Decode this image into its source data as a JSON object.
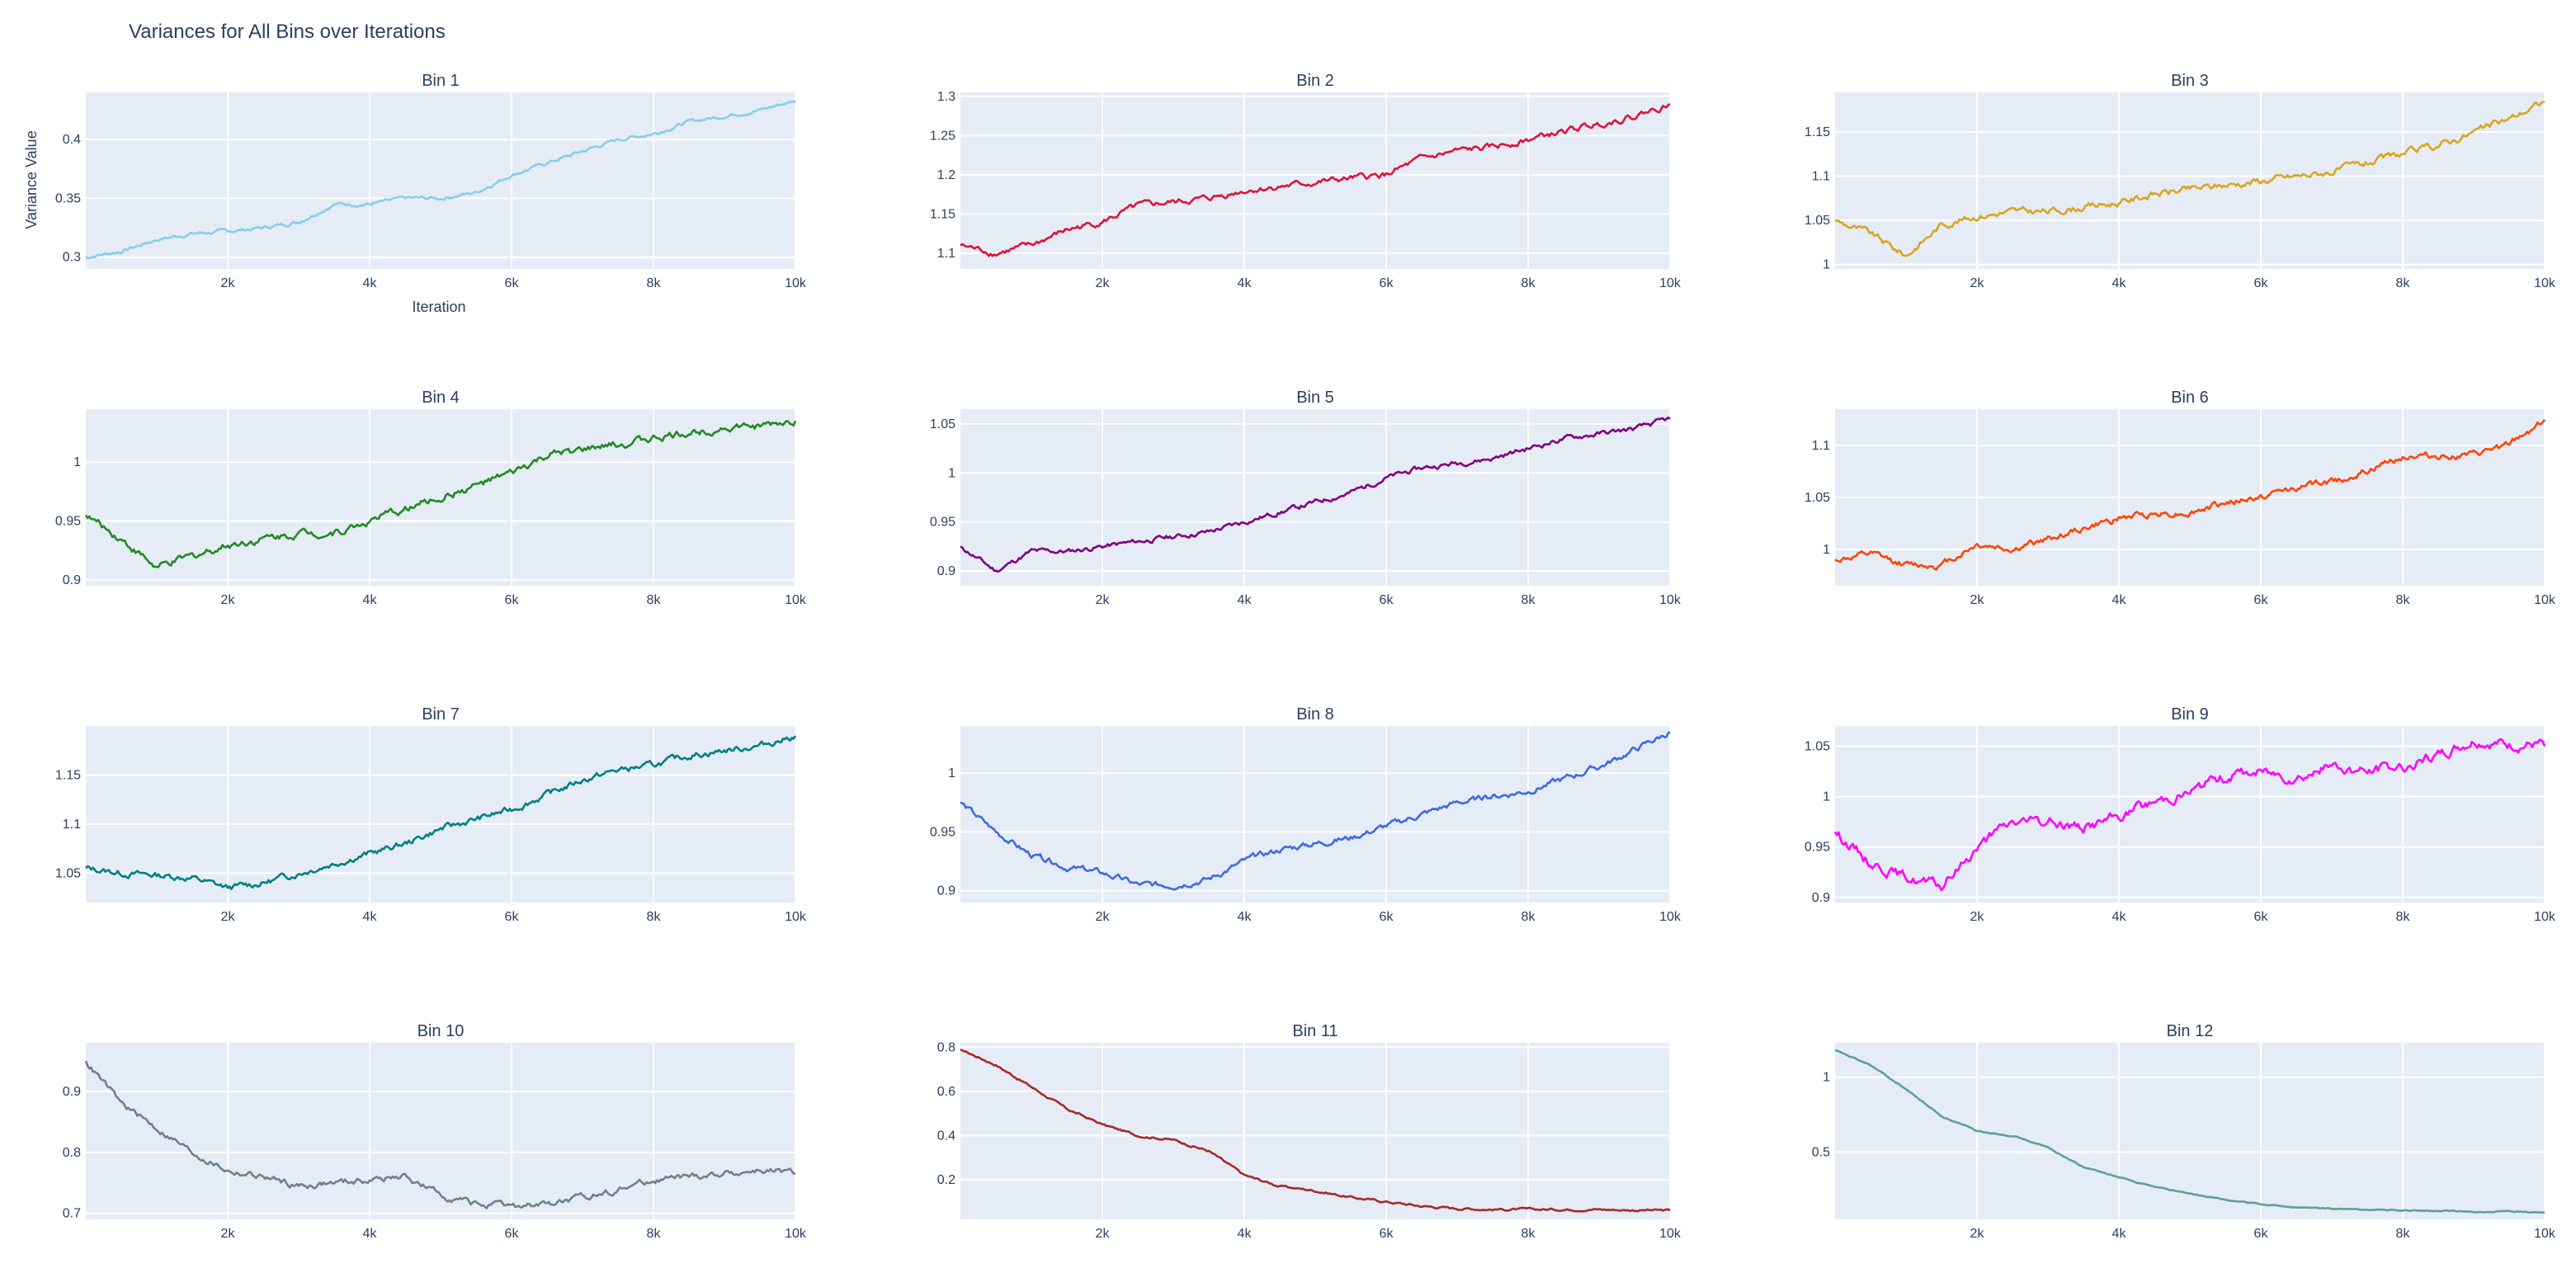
{
  "figure": {
    "title": "Variances for All Bins over Iterations",
    "xlabel": "Iteration",
    "ylabel": "Variance Value"
  },
  "chart_data": [
    {
      "type": "line",
      "title": "Bin 1",
      "color": "#87ceeb",
      "xlim": [
        0,
        10000
      ],
      "ylim": [
        0.29,
        0.44
      ],
      "yticks": [
        0.3,
        0.35,
        0.4
      ],
      "xticks": [
        2000,
        4000,
        6000,
        8000,
        10000
      ],
      "xtick_labels": [
        "2k",
        "4k",
        "6k",
        "8k",
        "10k"
      ],
      "ytick_labels": [
        "0.3",
        "0.35",
        "0.4"
      ],
      "x": [
        0,
        500,
        1000,
        1500,
        2000,
        2500,
        3000,
        3500,
        4000,
        4500,
        5000,
        5500,
        6000,
        6500,
        7000,
        7500,
        8000,
        8500,
        9000,
        9500,
        10000
      ],
      "y": [
        0.3,
        0.305,
        0.315,
        0.32,
        0.322,
        0.325,
        0.33,
        0.345,
        0.345,
        0.35,
        0.35,
        0.355,
        0.37,
        0.38,
        0.39,
        0.4,
        0.405,
        0.415,
        0.42,
        0.425,
        0.433
      ],
      "noise": 0.0012
    },
    {
      "type": "line",
      "title": "Bin 2",
      "color": "#dc143c",
      "xlim": [
        0,
        10000
      ],
      "ylim": [
        1.08,
        1.305
      ],
      "yticks": [
        1.1,
        1.15,
        1.2,
        1.25,
        1.3
      ],
      "xticks": [
        2000,
        4000,
        6000,
        8000,
        10000
      ],
      "xtick_labels": [
        "2k",
        "4k",
        "6k",
        "8k",
        "10k"
      ],
      "ytick_labels": [
        "1.1",
        "1.15",
        "1.2",
        "1.25",
        "1.3"
      ],
      "x": [
        0,
        500,
        1000,
        1500,
        2000,
        2500,
        3000,
        3500,
        4000,
        4500,
        5000,
        5500,
        6000,
        6500,
        7000,
        7500,
        8000,
        8500,
        9000,
        9500,
        10000
      ],
      "y": [
        1.11,
        1.1,
        1.11,
        1.13,
        1.14,
        1.16,
        1.165,
        1.17,
        1.18,
        1.185,
        1.19,
        1.195,
        1.2,
        1.22,
        1.23,
        1.235,
        1.245,
        1.255,
        1.265,
        1.275,
        1.29
      ],
      "noise": 0.003
    },
    {
      "type": "line",
      "title": "Bin 3",
      "color": "#daa520",
      "xlim": [
        0,
        10000
      ],
      "ylim": [
        0.995,
        1.195
      ],
      "yticks": [
        1,
        1.05,
        1.1,
        1.15
      ],
      "xticks": [
        2000,
        4000,
        6000,
        8000,
        10000
      ],
      "xtick_labels": [
        "2k",
        "4k",
        "6k",
        "8k",
        "10k"
      ],
      "ytick_labels": [
        "1",
        "1.05",
        "1.1",
        "1.15"
      ],
      "x": [
        0,
        500,
        1000,
        1500,
        2000,
        2500,
        3000,
        3500,
        4000,
        4500,
        5000,
        5500,
        6000,
        6500,
        7000,
        7500,
        8000,
        8500,
        9000,
        9500,
        10000
      ],
      "y": [
        1.05,
        1.035,
        1.01,
        1.045,
        1.055,
        1.06,
        1.06,
        1.065,
        1.07,
        1.08,
        1.085,
        1.09,
        1.095,
        1.1,
        1.105,
        1.115,
        1.125,
        1.135,
        1.15,
        1.165,
        1.185
      ],
      "noise": 0.003
    },
    {
      "type": "line",
      "title": "Bin 4",
      "color": "#228b22",
      "xlim": [
        0,
        10000
      ],
      "ylim": [
        0.895,
        1.045
      ],
      "yticks": [
        0.9,
        0.95,
        1
      ],
      "xticks": [
        2000,
        4000,
        6000,
        8000,
        10000
      ],
      "xtick_labels": [
        "2k",
        "4k",
        "6k",
        "8k",
        "10k"
      ],
      "ytick_labels": [
        "0.9",
        "0.95",
        "1"
      ],
      "x": [
        0,
        500,
        1000,
        1500,
        2000,
        2500,
        3000,
        3500,
        4000,
        4500,
        5000,
        5500,
        6000,
        6500,
        7000,
        7500,
        8000,
        8500,
        9000,
        9500,
        10000
      ],
      "y": [
        0.955,
        0.935,
        0.91,
        0.92,
        0.93,
        0.935,
        0.94,
        0.94,
        0.95,
        0.96,
        0.97,
        0.98,
        0.99,
        1.005,
        1.01,
        1.015,
        1.02,
        1.025,
        1.03,
        1.03,
        1.035
      ],
      "noise": 0.0025
    },
    {
      "type": "line",
      "title": "Bin 5",
      "color": "#800080",
      "xlim": [
        0,
        10000
      ],
      "ylim": [
        0.885,
        1.065
      ],
      "yticks": [
        0.9,
        0.95,
        1,
        1.05
      ],
      "xticks": [
        2000,
        4000,
        6000,
        8000,
        10000
      ],
      "xtick_labels": [
        "2k",
        "4k",
        "6k",
        "8k",
        "10k"
      ],
      "ytick_labels": [
        "0.9",
        "0.95",
        "1",
        "1.05"
      ],
      "x": [
        0,
        500,
        1000,
        1500,
        2000,
        2500,
        3000,
        3500,
        4000,
        4500,
        5000,
        5500,
        6000,
        6500,
        7000,
        7500,
        8000,
        8500,
        9000,
        9500,
        10000
      ],
      "y": [
        0.925,
        0.9,
        0.92,
        0.92,
        0.925,
        0.93,
        0.935,
        0.94,
        0.95,
        0.96,
        0.97,
        0.98,
        0.995,
        1.005,
        1.01,
        1.015,
        1.025,
        1.035,
        1.04,
        1.045,
        1.055
      ],
      "noise": 0.002
    },
    {
      "type": "line",
      "title": "Bin 6",
      "color": "#ff4500",
      "xlim": [
        0,
        10000
      ],
      "ylim": [
        0.965,
        1.135
      ],
      "yticks": [
        1,
        1.05,
        1.1
      ],
      "xticks": [
        2000,
        4000,
        6000,
        8000,
        10000
      ],
      "xtick_labels": [
        "2k",
        "4k",
        "6k",
        "8k",
        "10k"
      ],
      "ytick_labels": [
        "1",
        "1.05",
        "1.1"
      ],
      "x": [
        0,
        500,
        1000,
        1500,
        2000,
        2500,
        3000,
        3500,
        4000,
        4500,
        5000,
        5500,
        6000,
        6500,
        7000,
        7500,
        8000,
        8500,
        9000,
        9500,
        10000
      ],
      "y": [
        0.99,
        0.995,
        0.985,
        0.985,
        1.005,
        1.0,
        1.01,
        1.02,
        1.03,
        1.035,
        1.035,
        1.045,
        1.05,
        1.06,
        1.065,
        1.075,
        1.09,
        1.09,
        1.09,
        1.1,
        1.125
      ],
      "noise": 0.0025
    },
    {
      "type": "line",
      "title": "Bin 7",
      "color": "#008080",
      "xlim": [
        0,
        10000
      ],
      "ylim": [
        1.02,
        1.2
      ],
      "yticks": [
        1.05,
        1.1,
        1.15
      ],
      "xticks": [
        2000,
        4000,
        6000,
        8000,
        10000
      ],
      "xtick_labels": [
        "2k",
        "4k",
        "6k",
        "8k",
        "10k"
      ],
      "ytick_labels": [
        "1.05",
        "1.1",
        "1.15"
      ],
      "x": [
        0,
        500,
        1000,
        1500,
        2000,
        2500,
        3000,
        3500,
        4000,
        4500,
        5000,
        5500,
        6000,
        6500,
        7000,
        7500,
        8000,
        8500,
        9000,
        9500,
        10000
      ],
      "y": [
        1.055,
        1.05,
        1.048,
        1.045,
        1.035,
        1.04,
        1.05,
        1.06,
        1.07,
        1.08,
        1.095,
        1.105,
        1.115,
        1.13,
        1.145,
        1.155,
        1.16,
        1.17,
        1.175,
        1.18,
        1.19
      ],
      "noise": 0.0025
    },
    {
      "type": "line",
      "title": "Bin 8",
      "color": "#4169e1",
      "xlim": [
        0,
        10000
      ],
      "ylim": [
        0.89,
        1.04
      ],
      "yticks": [
        0.9,
        0.95,
        1
      ],
      "xticks": [
        2000,
        4000,
        6000,
        8000,
        10000
      ],
      "xtick_labels": [
        "2k",
        "4k",
        "6k",
        "8k",
        "10k"
      ],
      "ytick_labels": [
        "0.9",
        "0.95",
        "1"
      ],
      "x": [
        0,
        500,
        1000,
        1500,
        2000,
        2500,
        3000,
        3500,
        4000,
        4500,
        5000,
        5500,
        6000,
        6500,
        7000,
        7500,
        8000,
        8500,
        9000,
        9500,
        10000
      ],
      "y": [
        0.975,
        0.95,
        0.93,
        0.92,
        0.915,
        0.905,
        0.905,
        0.91,
        0.925,
        0.935,
        0.94,
        0.945,
        0.955,
        0.965,
        0.975,
        0.98,
        0.985,
        0.995,
        1.005,
        1.02,
        1.035
      ],
      "noise": 0.002
    },
    {
      "type": "line",
      "title": "Bin 9",
      "color": "#ff00ff",
      "xlim": [
        0,
        10000
      ],
      "ylim": [
        0.895,
        1.07
      ],
      "yticks": [
        0.9,
        0.95,
        1,
        1.05
      ],
      "xticks": [
        2000,
        4000,
        6000,
        8000,
        10000
      ],
      "xtick_labels": [
        "2k",
        "4k",
        "6k",
        "8k",
        "10k"
      ],
      "ytick_labels": [
        "0.9",
        "0.95",
        "1",
        "1.05"
      ],
      "x": [
        0,
        500,
        1000,
        1500,
        2000,
        2500,
        3000,
        3500,
        4000,
        4500,
        5000,
        5500,
        6000,
        6500,
        7000,
        7500,
        8000,
        8500,
        9000,
        9500,
        10000
      ],
      "y": [
        0.965,
        0.935,
        0.92,
        0.91,
        0.95,
        0.975,
        0.975,
        0.97,
        0.98,
        0.995,
        1.005,
        1.02,
        1.025,
        1.02,
        1.03,
        1.025,
        1.03,
        1.04,
        1.055,
        1.05,
        1.05
      ],
      "noise": 0.004
    },
    {
      "type": "line",
      "title": "Bin 10",
      "color": "#708090",
      "xlim": [
        0,
        10000
      ],
      "ylim": [
        0.69,
        0.98
      ],
      "yticks": [
        0.7,
        0.8,
        0.9
      ],
      "xticks": [
        2000,
        4000,
        6000,
        8000,
        10000
      ],
      "xtick_labels": [
        "2k",
        "4k",
        "6k",
        "8k",
        "10k"
      ],
      "ytick_labels": [
        "0.7",
        "0.8",
        "0.9"
      ],
      "x": [
        0,
        500,
        1000,
        1500,
        2000,
        2500,
        3000,
        3500,
        4000,
        4500,
        5000,
        5500,
        6000,
        6500,
        7000,
        7500,
        8000,
        8500,
        9000,
        9500,
        10000
      ],
      "y": [
        0.95,
        0.88,
        0.84,
        0.8,
        0.77,
        0.76,
        0.745,
        0.75,
        0.755,
        0.76,
        0.73,
        0.715,
        0.71,
        0.715,
        0.725,
        0.74,
        0.755,
        0.76,
        0.765,
        0.77,
        0.765
      ],
      "noise": 0.004
    },
    {
      "type": "line",
      "title": "Bin 11",
      "color": "#a52a2a",
      "xlim": [
        0,
        10000
      ],
      "ylim": [
        0.02,
        0.82
      ],
      "yticks": [
        0.2,
        0.4,
        0.6,
        0.8
      ],
      "xticks": [
        2000,
        4000,
        6000,
        8000,
        10000
      ],
      "xtick_labels": [
        "2k",
        "4k",
        "6k",
        "8k",
        "10k"
      ],
      "ytick_labels": [
        "0.2",
        "0.4",
        "0.6",
        "0.8"
      ],
      "x": [
        0,
        500,
        1000,
        1500,
        2000,
        2500,
        3000,
        3500,
        4000,
        4500,
        5000,
        5500,
        6000,
        6500,
        7000,
        7500,
        8000,
        8500,
        9000,
        9500,
        10000
      ],
      "y": [
        0.79,
        0.72,
        0.62,
        0.52,
        0.45,
        0.4,
        0.38,
        0.33,
        0.22,
        0.17,
        0.15,
        0.12,
        0.1,
        0.08,
        0.07,
        0.065,
        0.065,
        0.065,
        0.065,
        0.062,
        0.06
      ],
      "noise": 0.004
    },
    {
      "type": "line",
      "title": "Bin 12",
      "color": "#5f9ea0",
      "xlim": [
        0,
        10000
      ],
      "ylim": [
        0.05,
        1.23
      ],
      "yticks": [
        0.5,
        1
      ],
      "xticks": [
        2000,
        4000,
        6000,
        8000,
        10000
      ],
      "xtick_labels": [
        "2k",
        "4k",
        "6k",
        "8k",
        "10k"
      ],
      "ytick_labels": [
        "0.5",
        "1"
      ],
      "x": [
        0,
        500,
        1000,
        1500,
        2000,
        2500,
        3000,
        3500,
        4000,
        4500,
        5000,
        5500,
        6000,
        6500,
        7000,
        7500,
        8000,
        8500,
        9000,
        9500,
        10000
      ],
      "y": [
        1.18,
        1.08,
        0.92,
        0.74,
        0.64,
        0.61,
        0.53,
        0.4,
        0.33,
        0.27,
        0.22,
        0.18,
        0.15,
        0.13,
        0.12,
        0.115,
        0.11,
        0.105,
        0.1,
        0.1,
        0.095
      ],
      "noise": 0.003
    }
  ]
}
